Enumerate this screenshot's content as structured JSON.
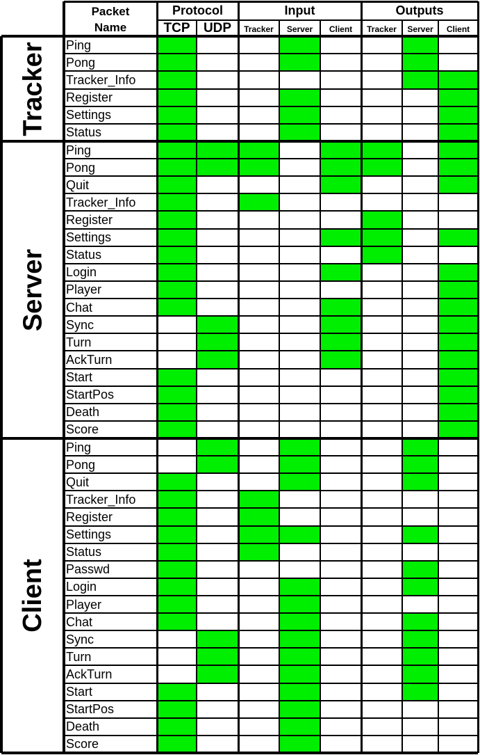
{
  "header": {
    "packet_name": [
      "Packet",
      "Name"
    ],
    "groups": [
      {
        "label": "Protocol",
        "subs": [
          "TCP",
          "UDP"
        ]
      },
      {
        "label": "Input",
        "subs": [
          "Tracker",
          "Server",
          "Client"
        ]
      },
      {
        "label": "Outputs",
        "subs": [
          "Tracker",
          "Server",
          "Client"
        ]
      }
    ]
  },
  "colors": {
    "fill": "#00ee00",
    "line": "#000000",
    "empty": "#ffffff"
  },
  "columns": [
    "TCP",
    "UDP",
    "Input Tracker",
    "Input Server",
    "Input Client",
    "Output Tracker",
    "Output Server",
    "Output Client"
  ],
  "sections": [
    {
      "name": "Tracker",
      "rows": [
        {
          "packet": "Ping",
          "marks": [
            1,
            0,
            0,
            1,
            0,
            0,
            1,
            0
          ]
        },
        {
          "packet": "Pong",
          "marks": [
            1,
            0,
            0,
            1,
            0,
            0,
            1,
            0
          ]
        },
        {
          "packet": "Tracker_Info",
          "marks": [
            1,
            0,
            0,
            0,
            0,
            0,
            1,
            1
          ]
        },
        {
          "packet": "Register",
          "marks": [
            1,
            0,
            0,
            1,
            0,
            0,
            0,
            1
          ]
        },
        {
          "packet": "Settings",
          "marks": [
            1,
            0,
            0,
            1,
            0,
            0,
            0,
            1
          ]
        },
        {
          "packet": "Status",
          "marks": [
            1,
            0,
            0,
            1,
            0,
            0,
            0,
            1
          ]
        }
      ]
    },
    {
      "name": "Server",
      "rows": [
        {
          "packet": "Ping",
          "marks": [
            1,
            1,
            1,
            0,
            1,
            1,
            0,
            1
          ]
        },
        {
          "packet": "Pong",
          "marks": [
            1,
            1,
            1,
            0,
            1,
            1,
            0,
            1
          ]
        },
        {
          "packet": "Quit",
          "marks": [
            1,
            0,
            0,
            0,
            1,
            0,
            0,
            1
          ]
        },
        {
          "packet": "Tracker_Info",
          "marks": [
            1,
            0,
            1,
            0,
            0,
            0,
            0,
            0
          ]
        },
        {
          "packet": "Register",
          "marks": [
            1,
            0,
            0,
            0,
            0,
            1,
            0,
            0
          ]
        },
        {
          "packet": "Settings",
          "marks": [
            1,
            0,
            0,
            0,
            1,
            1,
            0,
            1
          ]
        },
        {
          "packet": "Status",
          "marks": [
            1,
            0,
            0,
            0,
            0,
            1,
            0,
            0
          ]
        },
        {
          "packet": "Login",
          "marks": [
            1,
            0,
            0,
            0,
            1,
            0,
            0,
            1
          ]
        },
        {
          "packet": "Player",
          "marks": [
            1,
            0,
            0,
            0,
            0,
            0,
            0,
            1
          ]
        },
        {
          "packet": "Chat",
          "marks": [
            1,
            0,
            0,
            0,
            1,
            0,
            0,
            1
          ]
        },
        {
          "packet": "Sync",
          "marks": [
            0,
            1,
            0,
            0,
            1,
            0,
            0,
            1
          ]
        },
        {
          "packet": "Turn",
          "marks": [
            0,
            1,
            0,
            0,
            1,
            0,
            0,
            1
          ]
        },
        {
          "packet": "AckTurn",
          "marks": [
            0,
            1,
            0,
            0,
            1,
            0,
            0,
            1
          ]
        },
        {
          "packet": "Start",
          "marks": [
            1,
            0,
            0,
            0,
            0,
            0,
            0,
            1
          ]
        },
        {
          "packet": "StartPos",
          "marks": [
            1,
            0,
            0,
            0,
            0,
            0,
            0,
            1
          ]
        },
        {
          "packet": "Death",
          "marks": [
            1,
            0,
            0,
            0,
            0,
            0,
            0,
            1
          ]
        },
        {
          "packet": "Score",
          "marks": [
            1,
            0,
            0,
            0,
            0,
            0,
            0,
            1
          ]
        }
      ]
    },
    {
      "name": "Client",
      "rows": [
        {
          "packet": "Ping",
          "marks": [
            0,
            1,
            0,
            1,
            0,
            0,
            1,
            0
          ]
        },
        {
          "packet": "Pong",
          "marks": [
            0,
            1,
            0,
            1,
            0,
            0,
            1,
            0
          ]
        },
        {
          "packet": "Quit",
          "marks": [
            1,
            0,
            0,
            1,
            0,
            0,
            1,
            0
          ]
        },
        {
          "packet": "Tracker_Info",
          "marks": [
            1,
            0,
            1,
            0,
            0,
            0,
            0,
            0
          ]
        },
        {
          "packet": "Register",
          "marks": [
            1,
            0,
            1,
            0,
            0,
            0,
            0,
            0
          ]
        },
        {
          "packet": "Settings",
          "marks": [
            1,
            0,
            1,
            1,
            0,
            0,
            1,
            0
          ]
        },
        {
          "packet": "Status",
          "marks": [
            1,
            0,
            1,
            0,
            0,
            0,
            0,
            0
          ]
        },
        {
          "packet": "Passwd",
          "marks": [
            1,
            0,
            0,
            0,
            0,
            0,
            1,
            0
          ]
        },
        {
          "packet": "Login",
          "marks": [
            1,
            0,
            0,
            1,
            0,
            0,
            1,
            0
          ]
        },
        {
          "packet": "Player",
          "marks": [
            1,
            0,
            0,
            1,
            0,
            0,
            0,
            0
          ]
        },
        {
          "packet": "Chat",
          "marks": [
            1,
            0,
            0,
            1,
            0,
            0,
            1,
            0
          ]
        },
        {
          "packet": "Sync",
          "marks": [
            0,
            1,
            0,
            1,
            0,
            0,
            1,
            0
          ]
        },
        {
          "packet": "Turn",
          "marks": [
            0,
            1,
            0,
            1,
            0,
            0,
            1,
            0
          ]
        },
        {
          "packet": "AckTurn",
          "marks": [
            0,
            1,
            0,
            1,
            0,
            0,
            1,
            0
          ]
        },
        {
          "packet": "Start",
          "marks": [
            1,
            0,
            0,
            1,
            0,
            0,
            1,
            0
          ]
        },
        {
          "packet": "StartPos",
          "marks": [
            1,
            0,
            0,
            1,
            0,
            0,
            0,
            0
          ]
        },
        {
          "packet": "Death",
          "marks": [
            1,
            0,
            0,
            1,
            0,
            0,
            0,
            0
          ]
        },
        {
          "packet": "Score",
          "marks": [
            1,
            0,
            0,
            1,
            0,
            0,
            0,
            0
          ]
        }
      ]
    }
  ]
}
